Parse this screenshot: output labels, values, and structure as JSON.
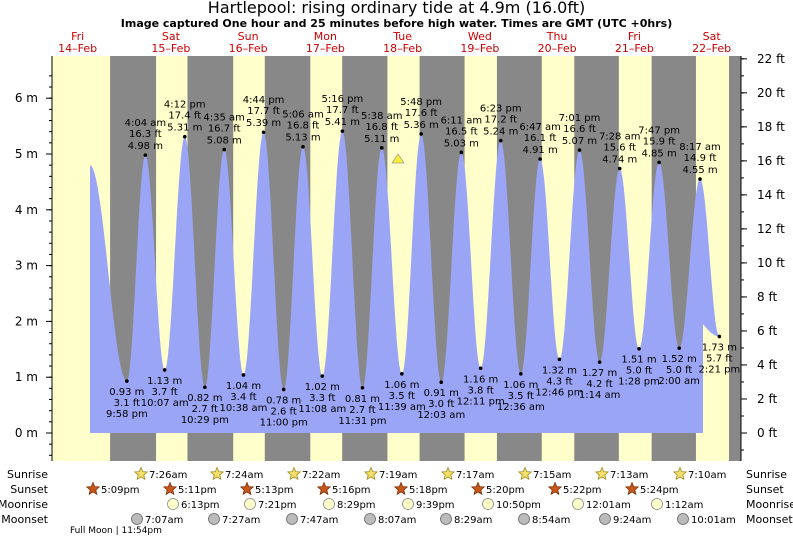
{
  "title": "Hartlepool: rising  ordinary tide at 4.9m (16.0ft)",
  "subtitle": "Image captured One hour and 25 minutes before high water. Times are GMT (UTC +0hrs)",
  "chart_data": {
    "type": "area",
    "y_left_unit": "m",
    "y_left_range": [
      -0.5,
      6.75
    ],
    "y_left_ticks": [
      "0 m",
      "1 m",
      "2 m",
      "3 m",
      "4 m",
      "5 m",
      "6 m"
    ],
    "y_right_ticks": [
      "0 ft",
      "2 ft",
      "4 ft",
      "6 ft",
      "8 ft",
      "10 ft",
      "12 ft",
      "14 ft",
      "16 ft",
      "18 ft",
      "20 ft",
      "22 ft"
    ],
    "days": [
      {
        "dow": "Fri",
        "date": "14–Feb"
      },
      {
        "dow": "Sat",
        "date": "15–Feb"
      },
      {
        "dow": "Sun",
        "date": "16–Feb"
      },
      {
        "dow": "Mon",
        "date": "17–Feb"
      },
      {
        "dow": "Tue",
        "date": "18–Feb"
      },
      {
        "dow": "Wed",
        "date": "19–Feb"
      },
      {
        "dow": "Thu",
        "date": "20–Feb"
      },
      {
        "dow": "Fri",
        "date": "21–Feb"
      },
      {
        "dow": "Sat",
        "date": "22–Feb"
      }
    ],
    "tides": [
      {
        "type": "low",
        "time": "9:58 pm",
        "m": "0.93 m",
        "ft": "3.1 ft",
        "v": 0.93
      },
      {
        "type": "high",
        "time": "4:04 am",
        "m": "4.98 m",
        "ft": "16.3 ft",
        "v": 4.98
      },
      {
        "type": "low",
        "time": "10:07 am",
        "m": "1.13 m",
        "ft": "3.7 ft",
        "v": 1.13
      },
      {
        "type": "high",
        "time": "4:12 pm",
        "m": "5.31 m",
        "ft": "17.4 ft",
        "v": 5.31
      },
      {
        "type": "low",
        "time": "10:29 pm",
        "m": "0.82 m",
        "ft": "2.7 ft",
        "v": 0.82
      },
      {
        "type": "high",
        "time": "4:35 am",
        "m": "5.08 m",
        "ft": "16.7 ft",
        "v": 5.08
      },
      {
        "type": "low",
        "time": "10:38 am",
        "m": "1.04 m",
        "ft": "3.4 ft",
        "v": 1.04
      },
      {
        "type": "high",
        "time": "4:44 pm",
        "m": "5.39 m",
        "ft": "17.7 ft",
        "v": 5.39
      },
      {
        "type": "low",
        "time": "11:00 pm",
        "m": "0.78 m",
        "ft": "2.6 ft",
        "v": 0.78
      },
      {
        "type": "high",
        "time": "5:06 am",
        "m": "5.13 m",
        "ft": "16.8 ft",
        "v": 5.13
      },
      {
        "type": "low",
        "time": "11:08 am",
        "m": "1.02 m",
        "ft": "3.3 ft",
        "v": 1.02
      },
      {
        "type": "high",
        "time": "5:16 pm",
        "m": "5.41 m",
        "ft": "17.7 ft",
        "v": 5.41
      },
      {
        "type": "low",
        "time": "11:31 pm",
        "m": "0.81 m",
        "ft": "2.7 ft",
        "v": 0.81
      },
      {
        "type": "high",
        "time": "5:38 am",
        "m": "5.11 m",
        "ft": "16.8 ft",
        "v": 5.11
      },
      {
        "type": "low",
        "time": "11:39 am",
        "m": "1.06 m",
        "ft": "3.5 ft",
        "v": 1.06
      },
      {
        "type": "high",
        "time": "5:48 pm",
        "m": "5.36 m",
        "ft": "17.6 ft",
        "v": 5.36
      },
      {
        "type": "low",
        "time": "12:03 am",
        "m": "0.91 m",
        "ft": "3.0 ft",
        "v": 0.91
      },
      {
        "type": "high",
        "time": "6:11 am",
        "m": "5.03 m",
        "ft": "16.5 ft",
        "v": 5.03
      },
      {
        "type": "low",
        "time": "12:11 pm",
        "m": "1.16 m",
        "ft": "3.8 ft",
        "v": 1.16
      },
      {
        "type": "high",
        "time": "6:23 pm",
        "m": "5.24 m",
        "ft": "17.2 ft",
        "v": 5.24
      },
      {
        "type": "low",
        "time": "12:36 am",
        "m": "1.06 m",
        "ft": "3.5 ft",
        "v": 1.06
      },
      {
        "type": "high",
        "time": "6:47 am",
        "m": "4.91 m",
        "ft": "16.1 ft",
        "v": 4.91
      },
      {
        "type": "low",
        "time": "12:46 pm",
        "m": "1.32 m",
        "ft": "4.3 ft",
        "v": 1.32
      },
      {
        "type": "high",
        "time": "7:01 pm",
        "m": "5.07 m",
        "ft": "16.6 ft",
        "v": 5.07
      },
      {
        "type": "low",
        "time": "1:14 am",
        "m": "1.27 m",
        "ft": "4.2 ft",
        "v": 1.27
      },
      {
        "type": "high",
        "time": "7:28 am",
        "m": "4.74 m",
        "ft": "15.6 ft",
        "v": 4.74
      },
      {
        "type": "low",
        "time": "1:28 pm",
        "m": "1.51 m",
        "ft": "5.0 ft",
        "v": 1.51
      },
      {
        "type": "high",
        "time": "7:47 pm",
        "m": "4.85 m",
        "ft": "15.9 ft",
        "v": 4.85
      },
      {
        "type": "low",
        "time": "2:00 am",
        "m": "1.52 m",
        "ft": "5.0 ft",
        "v": 1.52
      },
      {
        "type": "high",
        "time": "8:17 am",
        "m": "4.55 m",
        "ft": "14.9 ft",
        "v": 4.55
      },
      {
        "type": "low",
        "time": "2:21 pm",
        "m": "1.73 m",
        "ft": "5.7 ft",
        "v": 1.73
      }
    ],
    "sunrise": [
      "7:26am",
      "7:24am",
      "7:22am",
      "7:19am",
      "7:17am",
      "7:15am",
      "7:13am",
      "7:10am"
    ],
    "sunset": [
      "5:09pm",
      "5:11pm",
      "5:13pm",
      "5:16pm",
      "5:18pm",
      "5:20pm",
      "5:22pm",
      "5:24pm"
    ],
    "moonrise": [
      "6:13pm",
      "7:21pm",
      "8:29pm",
      "9:39pm",
      "10:50pm",
      "12:01am",
      "1:12am"
    ],
    "moonset": [
      "7:07am",
      "7:27am",
      "7:47am",
      "8:07am",
      "8:29am",
      "8:54am",
      "9:24am",
      "10:01am"
    ],
    "row_labels": [
      "Sunrise",
      "Sunset",
      "Moonrise",
      "Moonset"
    ],
    "full_moon": "Full Moon | 11:54pm",
    "colors": {
      "day": "#ffffcc",
      "night": "#888888",
      "water": "#9aa5f5",
      "day_header": "#cc0000",
      "marker": "#ffee33"
    }
  }
}
